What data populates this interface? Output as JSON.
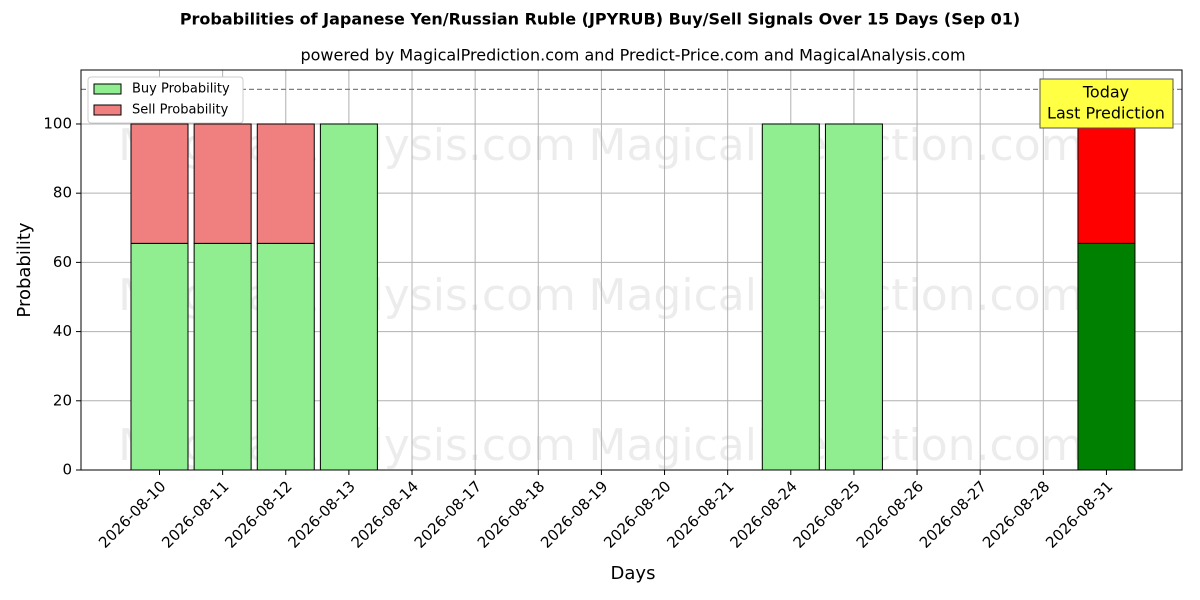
{
  "chart_data": {
    "type": "bar",
    "stacked": true,
    "title": "Probabilities of Japanese Yen/Russian Ruble (JPYRUB) Buy/Sell Signals Over 15 Days (Sep 01)",
    "subtitle": "powered by MagicalPrediction.com and Predict-Price.com and MagicalAnalysis.com",
    "xlabel": "Days",
    "ylabel": "Probability",
    "categories": [
      "2026-08-10",
      "2026-08-11",
      "2026-08-12",
      "2026-08-13",
      "2026-08-14",
      "2026-08-17",
      "2026-08-18",
      "2026-08-19",
      "2026-08-20",
      "2026-08-21",
      "2026-08-24",
      "2026-08-25",
      "2026-08-26",
      "2026-08-27",
      "2026-08-28",
      "2026-08-31"
    ],
    "series": [
      {
        "name": "Buy Probability",
        "color": "#90ee90",
        "highlight_color": "#008000",
        "values": [
          65.5,
          65.5,
          65.5,
          100,
          0,
          0,
          0,
          0,
          0,
          0,
          100,
          100,
          0,
          0,
          0,
          65.5
        ]
      },
      {
        "name": "Sell Probability",
        "color": "#f08080",
        "highlight_color": "#ff0000",
        "values": [
          34.5,
          34.5,
          34.5,
          0,
          0,
          0,
          0,
          0,
          0,
          0,
          0,
          0,
          0,
          0,
          0,
          34.5
        ]
      }
    ],
    "ylim": [
      0,
      115.6
    ],
    "yticks": [
      0,
      20,
      40,
      60,
      80,
      100
    ],
    "grid": true,
    "legend": "upper left",
    "hline": 110,
    "annotation": [
      "Today",
      "Last Prediction"
    ],
    "watermarks": [
      "MagicalAnalysis.com",
      "MagicalPrediction.com"
    ]
  }
}
